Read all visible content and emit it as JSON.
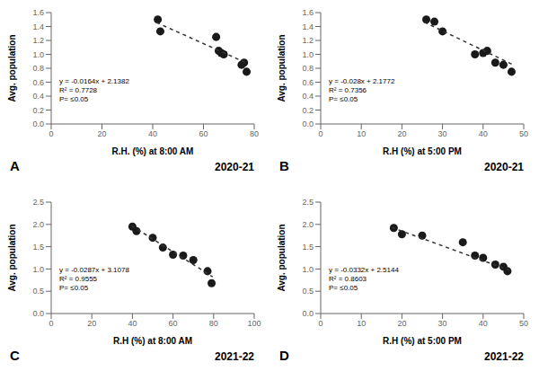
{
  "chart_data": [
    {
      "type": "scatter",
      "title": "A",
      "subtitle": "2020-21",
      "x_label": "R.H. (%) at 8:00 AM",
      "y_label": "Avg. population",
      "annotations": [
        "y = -0.0164x + 2.1382",
        "R² = 0.7728",
        "P= ≤0.05"
      ],
      "series": [
        {
          "type": "scatter",
          "color": "#1a1a1a",
          "x": [
            42,
            43,
            65,
            66,
            67,
            68,
            75,
            76,
            77
          ],
          "values": [
            1.5,
            1.33,
            1.25,
            1.05,
            1.02,
            1.0,
            0.85,
            0.88,
            0.75
          ]
        },
        {
          "type": "line",
          "line_style": "dashed",
          "color": "#333333",
          "x": [
            41.5,
            77.5
          ],
          "values": [
            1.4576,
            0.8672
          ]
        }
      ],
      "xlim": [
        0,
        80
      ],
      "xticks": [
        0,
        20,
        40,
        60,
        80
      ],
      "ylim": [
        0,
        1.6
      ],
      "yticks": [
        {
          "value": 0,
          "label": "0.0"
        },
        0.2,
        0.4,
        0.6,
        0.8,
        {
          "value": 1.0,
          "label": "1.0"
        },
        1.2,
        1.4,
        1.6
      ],
      "grid": false
    },
    {
      "type": "scatter",
      "title": "B",
      "subtitle": "2020-21",
      "x_label": "R.H (%) at 5:00 PM",
      "y_label": "Avg. population",
      "annotations": [
        "y = -0.028x + 2.1772",
        "R² = 0.7356",
        "P= ≤0.05"
      ],
      "series": [
        {
          "type": "scatter",
          "color": "#1a1a1a",
          "x": [
            26,
            28,
            30,
            38,
            40,
            41,
            43,
            45,
            47
          ],
          "values": [
            1.5,
            1.47,
            1.33,
            1.0,
            1.02,
            1.05,
            0.88,
            0.85,
            0.75
          ]
        },
        {
          "type": "line",
          "line_style": "dashed",
          "color": "#333333",
          "x": [
            25.5,
            47.5
          ],
          "values": [
            1.4632,
            0.8472
          ]
        }
      ],
      "xlim": [
        0,
        50
      ],
      "xticks": [
        0,
        10,
        20,
        30,
        40,
        50
      ],
      "ylim": [
        0,
        1.6
      ],
      "yticks": [
        {
          "value": 0,
          "label": "0.0"
        },
        0.2,
        0.4,
        0.6,
        0.8,
        {
          "value": 1.0,
          "label": "1.0"
        },
        1.2,
        1.4,
        1.6
      ],
      "grid": false
    },
    {
      "type": "scatter",
      "title": "C",
      "subtitle": "2021-22",
      "x_label": "R.H (%) at 8:00 AM",
      "y_label": "Avg. population",
      "annotations": [
        "y = -0.0287x + 3.1078",
        "R² = 0.9555",
        "P= ≤0.05"
      ],
      "series": [
        {
          "type": "scatter",
          "color": "#1a1a1a",
          "x": [
            40,
            42,
            50,
            55,
            60,
            65,
            70,
            77,
            79
          ],
          "values": [
            1.95,
            1.85,
            1.7,
            1.48,
            1.32,
            1.3,
            1.2,
            0.95,
            0.68
          ]
        },
        {
          "type": "line",
          "line_style": "dashed",
          "color": "#333333",
          "x": [
            39.5,
            79.5
          ],
          "values": [
            1.97415,
            0.82615
          ]
        }
      ],
      "xlim": [
        0,
        100
      ],
      "xticks": [
        0,
        20,
        40,
        60,
        80,
        100
      ],
      "ylim": [
        0,
        2.5
      ],
      "yticks": [
        {
          "value": 0,
          "label": "0.0"
        },
        0.5,
        {
          "value": 1.0,
          "label": "1.0"
        },
        1.5,
        {
          "value": 2.0,
          "label": "2.0"
        },
        2.5
      ],
      "grid": false
    },
    {
      "type": "scatter",
      "title": "D",
      "subtitle": "2021-22",
      "x_label": "R.H (%) at 5:00 PM",
      "y_label": "Avg. population",
      "annotations": [
        "y = -0.0332x + 2.5144",
        "R² = 0.8603",
        "P= ≤0.05"
      ],
      "series": [
        {
          "type": "scatter",
          "color": "#1a1a1a",
          "x": [
            18,
            20,
            25,
            35,
            38,
            40,
            43,
            45,
            46
          ],
          "values": [
            1.92,
            1.78,
            1.75,
            1.6,
            1.3,
            1.25,
            1.1,
            1.05,
            0.95
          ]
        },
        {
          "type": "line",
          "line_style": "dashed",
          "color": "#333333",
          "x": [
            17.5,
            46.5
          ],
          "values": [
            1.9334,
            0.9706
          ]
        }
      ],
      "xlim": [
        0,
        50
      ],
      "xticks": [
        0,
        10,
        20,
        30,
        40,
        50
      ],
      "ylim": [
        0,
        2.5
      ],
      "yticks": [
        {
          "value": 0,
          "label": "0.0"
        },
        0.5,
        {
          "value": 1.0,
          "label": "1.0"
        },
        1.5,
        {
          "value": 2.0,
          "label": "2.0"
        },
        2.5
      ],
      "grid": false
    }
  ]
}
